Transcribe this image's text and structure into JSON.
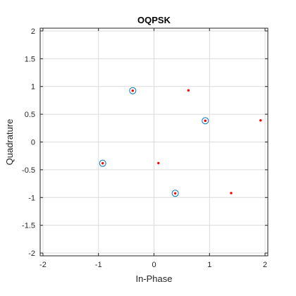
{
  "chart_data": {
    "type": "scatter",
    "title": "OQPSK",
    "xlabel": "In-Phase",
    "ylabel": "Quadrature",
    "xlim": [
      -2.05,
      2.05
    ],
    "ylim": [
      -2.05,
      2.05
    ],
    "xticks": [
      -2,
      -1,
      0,
      1,
      2
    ],
    "xtick_labels": [
      "-2",
      "-1",
      "0",
      "1",
      "2"
    ],
    "yticks": [
      2,
      1.5,
      1,
      0.5,
      0,
      -0.5,
      -1,
      -1.5,
      -2
    ],
    "ytick_labels": [
      "2",
      "1.5",
      "1",
      "0.5",
      "0",
      "-0.5",
      "-1",
      "-1.5",
      "-2"
    ],
    "grid": true,
    "legend": "none",
    "series": [
      {
        "marker": "open-circle",
        "color": "#0072bd",
        "points": [
          {
            "x": -0.383,
            "y": 0.924
          },
          {
            "x": 0.924,
            "y": 0.383
          },
          {
            "x": 0.383,
            "y": -0.924
          },
          {
            "x": -0.924,
            "y": -0.383
          }
        ]
      },
      {
        "marker": "dot",
        "color": "#ff0000",
        "points": [
          {
            "x": -0.383,
            "y": 0.924
          },
          {
            "x": 0.924,
            "y": 0.383
          },
          {
            "x": 0.383,
            "y": -0.924
          },
          {
            "x": -0.924,
            "y": -0.383
          },
          {
            "x": 0.62,
            "y": 0.93
          },
          {
            "x": 1.92,
            "y": 0.39
          },
          {
            "x": 1.39,
            "y": -0.92
          },
          {
            "x": 0.08,
            "y": -0.38
          }
        ]
      }
    ]
  }
}
